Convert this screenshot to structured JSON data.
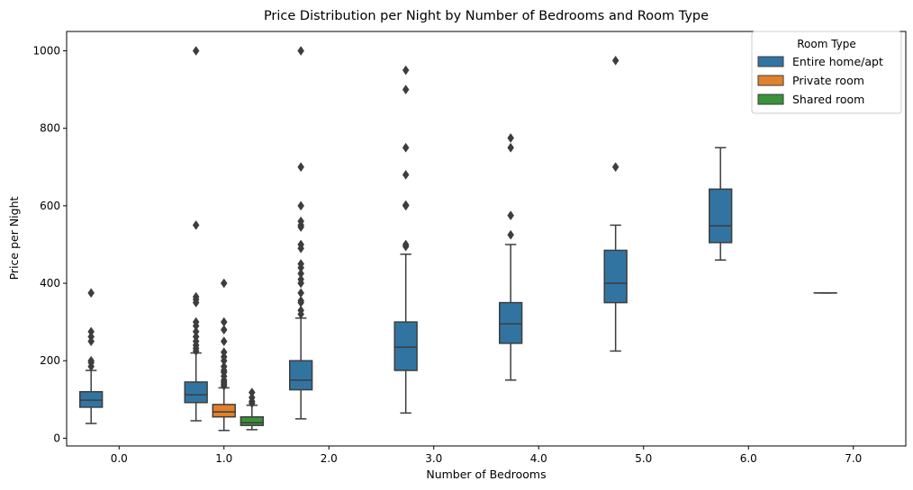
{
  "chart_data": {
    "type": "box",
    "title": "Price Distribution per Night by Number of Bedrooms and Room Type",
    "xlabel": "Number of Bedrooms",
    "ylabel": "Price per Night",
    "categories": [
      "0.0",
      "1.0",
      "2.0",
      "3.0",
      "4.0",
      "5.0",
      "6.0",
      "7.0"
    ],
    "ylim": [
      -20,
      1050
    ],
    "yticks": [
      0,
      200,
      400,
      600,
      800,
      1000
    ],
    "legend": {
      "title": "Room Type",
      "position": "top-right"
    },
    "colors": {
      "Entire home/apt": "#3274a1",
      "Private room": "#e1812c",
      "Shared room": "#3a923a",
      "edge": "#3d3d3d"
    },
    "series": [
      {
        "name": "Entire home/apt",
        "boxes": [
          {
            "category": "0.0",
            "whislo": 38,
            "q1": 80,
            "med": 98,
            "q3": 120,
            "whishi": 175,
            "fliers": [
              185,
              195,
              200,
              250,
              262,
              275,
              375
            ]
          },
          {
            "category": "1.0",
            "whislo": 45,
            "q1": 92,
            "med": 112,
            "q3": 145,
            "whishi": 220,
            "fliers": [
              225,
              232,
              240,
              250,
              262,
              275,
              290,
              300,
              350,
              358,
              365,
              550,
              1000
            ]
          },
          {
            "category": "2.0",
            "whislo": 50,
            "q1": 125,
            "med": 150,
            "q3": 200,
            "whishi": 310,
            "fliers": [
              320,
              330,
              350,
              355,
              375,
              400,
              410,
              425,
              440,
              450,
              490,
              500,
              545,
              550,
              560,
              600,
              700,
              1000
            ]
          },
          {
            "category": "3.0",
            "whislo": 65,
            "q1": 175,
            "med": 235,
            "q3": 300,
            "whishi": 475,
            "fliers": [
              495,
              500,
              600,
              602,
              680,
              750,
              900,
              950
            ]
          },
          {
            "category": "4.0",
            "whislo": 150,
            "q1": 245,
            "med": 295,
            "q3": 350,
            "whishi": 500,
            "fliers": [
              525,
              575,
              750,
              775
            ]
          },
          {
            "category": "5.0",
            "whislo": 225,
            "q1": 350,
            "med": 400,
            "q3": 485,
            "whishi": 550,
            "fliers": [
              700,
              975
            ]
          },
          {
            "category": "6.0",
            "whislo": 460,
            "q1": 505,
            "med": 548,
            "q3": 643,
            "whishi": 750,
            "fliers": []
          },
          {
            "category": "7.0",
            "whislo": 375,
            "q1": 375,
            "med": 375,
            "q3": 375,
            "whishi": 375,
            "fliers": []
          }
        ]
      },
      {
        "name": "Private room",
        "boxes": [
          {
            "category": "1.0",
            "whislo": 20,
            "q1": 55,
            "med": 68,
            "q3": 87,
            "whishi": 130,
            "fliers": [
              135,
              140,
              145,
              150,
              160,
              170,
              175,
              185,
              200,
              210,
              222,
              250,
              280,
              300,
              400
            ]
          }
        ]
      },
      {
        "name": "Shared room",
        "boxes": [
          {
            "category": "1.0",
            "whislo": 22,
            "q1": 33,
            "med": 40,
            "q3": 55,
            "whishi": 85,
            "fliers": [
              90,
              95,
              105,
              118
            ]
          }
        ]
      }
    ]
  }
}
